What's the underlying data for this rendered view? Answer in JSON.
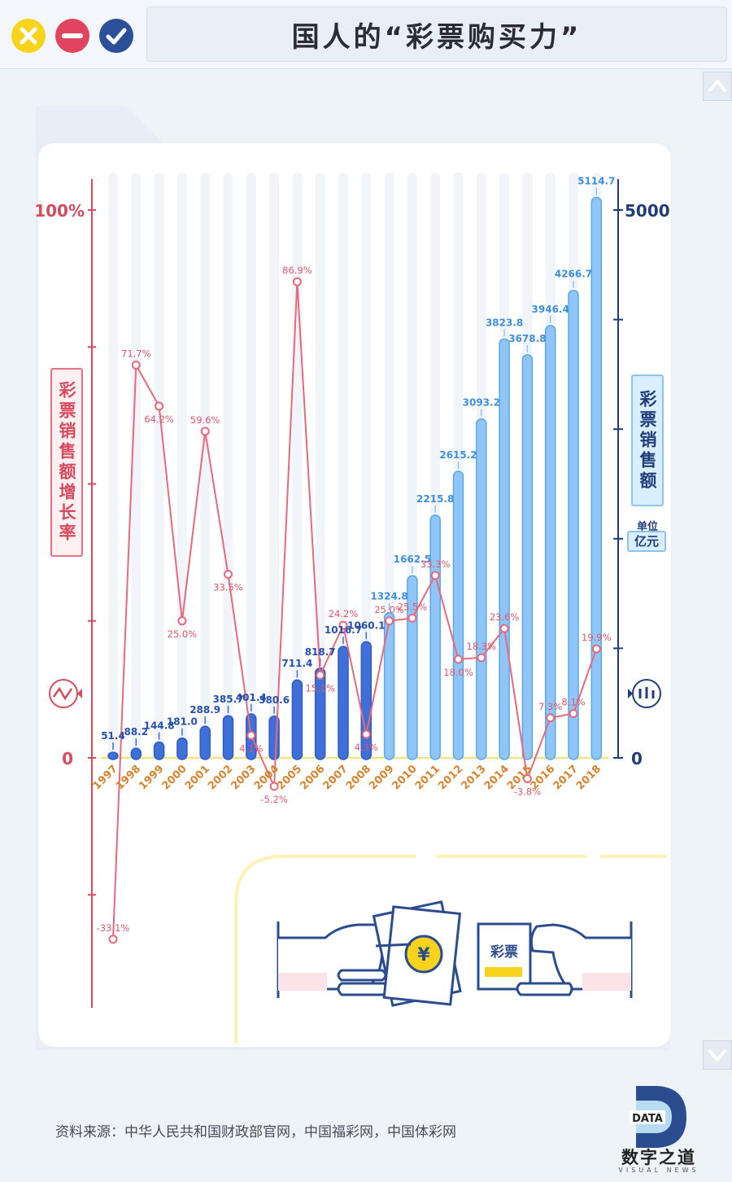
{
  "window": {
    "title": "国人的“彩票购买力”",
    "buttons": [
      {
        "icon": "close-icon",
        "color": "#f7d31e"
      },
      {
        "icon": "minimize-icon",
        "color": "#e0445f"
      },
      {
        "icon": "check-icon",
        "color": "#2c4f9a"
      }
    ]
  },
  "labels": {
    "left_axis": "彩票销售额增长率",
    "right_axis": "彩票销售额",
    "unit_label": "单位",
    "unit_value": "亿元",
    "left_ticks": [
      "100%",
      "0"
    ],
    "right_ticks": [
      "5000",
      "0"
    ]
  },
  "illustration": {
    "ticket_text": "彩票",
    "coin_symbol": "¥"
  },
  "footer": {
    "source": "资料来源：中华人民共和国财政部官网，中国福彩网，中国体彩网",
    "logo_main": "数字之道",
    "logo_sub": "VISUAL NEWS",
    "logo_badge": "DATA"
  },
  "colors": {
    "bar_dark": "#3f6fd8",
    "bar_light": "#8fc6f7",
    "line": "#e8687c",
    "axis_left": "#d84a5e",
    "axis_right": "#1f3d7a",
    "year_label": "#d9822b"
  },
  "chart_data": {
    "type": "bar",
    "categories": [
      "1997",
      "1998",
      "1999",
      "2000",
      "2001",
      "2002",
      "2003",
      "2004",
      "2005",
      "2006",
      "2007",
      "2008",
      "2009",
      "2010",
      "2011",
      "2012",
      "2013",
      "2014",
      "2015",
      "2016",
      "2017",
      "2018"
    ],
    "series": [
      {
        "type": "bar",
        "axis": "right",
        "values": [
          51.4,
          88.2,
          144.8,
          181.0,
          288.9,
          385.7,
          401.4,
          380.6,
          711.4,
          818.7,
          1016.7,
          1060.1,
          1324.8,
          1662.5,
          2215.8,
          2615.2,
          3093.2,
          3823.8,
          3678.8,
          3946.4,
          4266.7,
          5114.7
        ],
        "labels": [
          "51.4",
          "88.2",
          "144.8",
          "181.0",
          "288.9",
          "385.7",
          "401.4",
          "380.6",
          "711.4",
          "818.7",
          "1016.7",
          "1060.1",
          "1324.8",
          "1662.5",
          "2215.8",
          "2615.2",
          "3093.2",
          "3823.8",
          "3678.8",
          "3946.4",
          "4266.7",
          "5114.7"
        ]
      },
      {
        "type": "line",
        "axis": "left",
        "values": [
          -33.1,
          71.7,
          64.2,
          25.0,
          59.6,
          33.5,
          4.1,
          -5.2,
          86.9,
          15.1,
          24.2,
          4.3,
          25.0,
          25.5,
          33.3,
          18.0,
          18.3,
          23.6,
          -3.8,
          7.3,
          8.1,
          19.9
        ],
        "labels": [
          "-33.1%",
          "71.7%",
          "64.2%",
          "25.0%",
          "59.6%",
          "33.5%",
          "4.1%",
          "-5.2%",
          "86.9%",
          "15.1%",
          "24.2%",
          "4.3%",
          "25.0%",
          "25.5%",
          "33.3%",
          "18.0%",
          "18.3%",
          "23.6%",
          "-3.8%",
          "7.3%",
          "8.1%",
          "19.9%"
        ]
      }
    ],
    "xlabel": "",
    "y_left_label": "彩票销售额增长率",
    "y_right_label": "彩票销售额",
    "y_left_lim": [
      -45,
      100
    ],
    "y_right_lim": [
      0,
      5000
    ],
    "grid": true
  }
}
